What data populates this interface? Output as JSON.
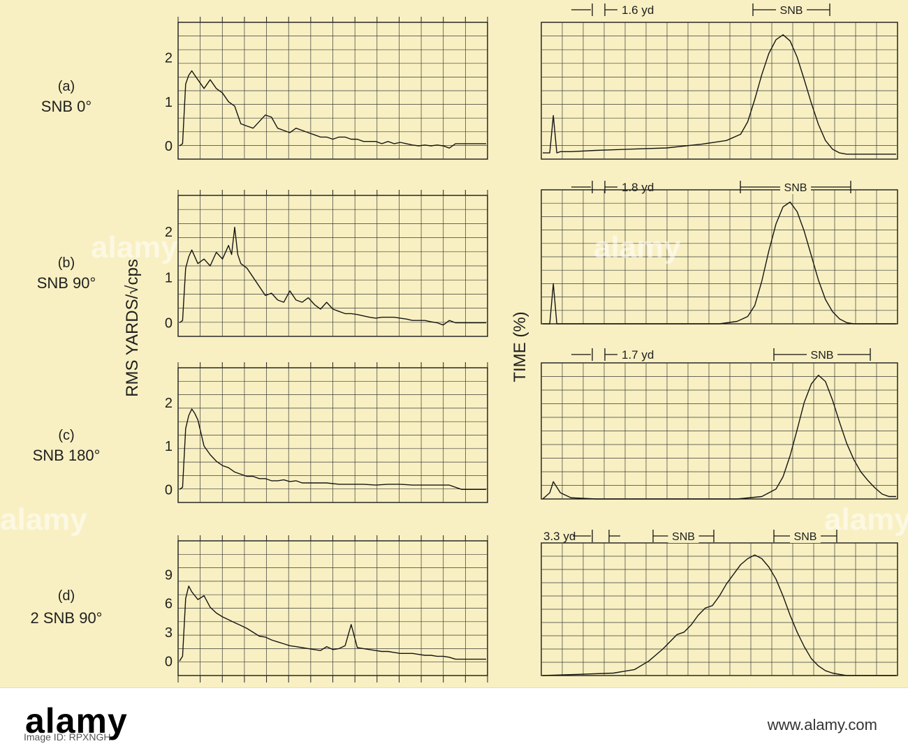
{
  "chart_data": [
    {
      "type": "line",
      "panel_label": "(a)",
      "panel_caption": "SNB 0°",
      "y_ticks": [
        "2",
        "1",
        "0"
      ],
      "ylim": [
        -0.3,
        2.8
      ],
      "x": [
        0,
        1,
        2,
        3,
        4,
        5,
        6,
        8,
        10,
        12,
        14,
        16,
        18,
        20,
        22,
        24,
        26,
        28,
        30,
        32,
        34,
        36,
        38,
        40,
        42,
        44,
        46,
        48,
        50,
        52,
        54,
        56,
        58,
        60,
        62,
        64,
        66,
        68,
        70,
        72,
        74,
        76,
        78,
        80,
        82,
        84,
        86,
        88,
        90,
        92,
        94,
        96,
        98,
        100
      ],
      "values": [
        0.0,
        0.05,
        1.4,
        1.6,
        1.7,
        1.6,
        1.5,
        1.3,
        1.5,
        1.3,
        1.2,
        1.0,
        0.9,
        0.5,
        0.45,
        0.4,
        0.55,
        0.7,
        0.65,
        0.4,
        0.35,
        0.3,
        0.4,
        0.35,
        0.3,
        0.25,
        0.2,
        0.2,
        0.15,
        0.2,
        0.2,
        0.15,
        0.15,
        0.1,
        0.1,
        0.1,
        0.05,
        0.1,
        0.05,
        0.08,
        0.05,
        0.02,
        0.0,
        0.02,
        0.0,
        0.02,
        0.0,
        -0.05,
        0.05,
        0.05,
        0.05,
        0.05,
        0.05,
        0.05
      ],
      "grid": true
    },
    {
      "type": "line",
      "panel_label": "(b)",
      "panel_caption": "SNB 90°",
      "y_ticks": [
        "2",
        "1",
        "0"
      ],
      "ylim": [
        -0.3,
        2.8
      ],
      "x": [
        0,
        1,
        2,
        3,
        4,
        6,
        8,
        10,
        12,
        14,
        16,
        17,
        18,
        19,
        20,
        22,
        24,
        26,
        28,
        30,
        32,
        34,
        36,
        38,
        40,
        42,
        44,
        46,
        48,
        50,
        52,
        54,
        56,
        58,
        60,
        62,
        64,
        66,
        68,
        70,
        72,
        74,
        76,
        78,
        80,
        82,
        84,
        86,
        88,
        90,
        92,
        94,
        96,
        98,
        100
      ],
      "values": [
        0.0,
        0.05,
        1.2,
        1.45,
        1.6,
        1.3,
        1.4,
        1.25,
        1.55,
        1.4,
        1.7,
        1.5,
        2.1,
        1.5,
        1.3,
        1.2,
        1.0,
        0.8,
        0.6,
        0.65,
        0.5,
        0.45,
        0.7,
        0.5,
        0.45,
        0.55,
        0.4,
        0.3,
        0.45,
        0.3,
        0.25,
        0.2,
        0.2,
        0.18,
        0.15,
        0.12,
        0.1,
        0.12,
        0.12,
        0.12,
        0.1,
        0.08,
        0.05,
        0.05,
        0.05,
        0.02,
        0.0,
        -0.05,
        0.05,
        0.0,
        0.0,
        0.0,
        0.0,
        0.0,
        0.0
      ],
      "grid": true
    },
    {
      "type": "line",
      "panel_label": "(c)",
      "panel_caption": "SNB 180°",
      "y_ticks": [
        "2",
        "1",
        "0"
      ],
      "ylim": [
        -0.3,
        2.8
      ],
      "x": [
        0,
        1,
        2,
        3,
        4,
        5,
        6,
        7,
        8,
        10,
        12,
        14,
        16,
        18,
        20,
        22,
        24,
        26,
        28,
        30,
        32,
        34,
        36,
        38,
        40,
        44,
        48,
        52,
        56,
        60,
        64,
        68,
        72,
        76,
        80,
        84,
        88,
        92,
        96,
        100
      ],
      "values": [
        0.0,
        0.05,
        1.4,
        1.7,
        1.85,
        1.75,
        1.6,
        1.3,
        1.0,
        0.8,
        0.65,
        0.55,
        0.5,
        0.4,
        0.35,
        0.3,
        0.3,
        0.25,
        0.25,
        0.2,
        0.2,
        0.22,
        0.18,
        0.2,
        0.15,
        0.15,
        0.15,
        0.12,
        0.12,
        0.12,
        0.1,
        0.12,
        0.12,
        0.1,
        0.1,
        0.1,
        0.1,
        0.0,
        0.0,
        0.0
      ],
      "grid": true
    },
    {
      "type": "line",
      "panel_label": "(d)",
      "panel_caption": "2 SNB 90°",
      "y_ticks": [
        "9",
        "6",
        "3",
        "0"
      ],
      "ylim": [
        -1.5,
        12.5
      ],
      "x": [
        0,
        1,
        2,
        3,
        4,
        6,
        8,
        10,
        12,
        14,
        16,
        18,
        20,
        22,
        24,
        26,
        28,
        30,
        32,
        34,
        36,
        38,
        40,
        42,
        44,
        46,
        48,
        50,
        52,
        54,
        56,
        58,
        60,
        62,
        64,
        66,
        68,
        70,
        72,
        74,
        76,
        78,
        80,
        82,
        84,
        86,
        88,
        90,
        92,
        94,
        96,
        98,
        100
      ],
      "values": [
        0.0,
        0.5,
        6.5,
        7.8,
        7.2,
        6.4,
        6.8,
        5.6,
        5.0,
        4.6,
        4.3,
        4.0,
        3.7,
        3.4,
        3.0,
        2.6,
        2.5,
        2.2,
        2.0,
        1.8,
        1.6,
        1.5,
        1.4,
        1.3,
        1.2,
        1.1,
        1.5,
        1.2,
        1.3,
        1.6,
        3.8,
        1.4,
        1.3,
        1.2,
        1.1,
        1.0,
        1.0,
        0.9,
        0.8,
        0.8,
        0.8,
        0.7,
        0.6,
        0.6,
        0.5,
        0.5,
        0.4,
        0.2,
        0.2,
        0.2,
        0.2,
        0.2,
        0.2
      ],
      "grid": true
    },
    {
      "type": "line",
      "panel_caption": "SNB 0°",
      "distance_label": "1.6 yd",
      "snb_labels": [
        "SNB"
      ],
      "ylim": [
        0,
        1.1
      ],
      "x": [
        0,
        2,
        3,
        4,
        5,
        8,
        15,
        25,
        35,
        45,
        52,
        56,
        58,
        60,
        62,
        64,
        66,
        68,
        70,
        72,
        74,
        76,
        78,
        80,
        82,
        84,
        86,
        88,
        90,
        95,
        100
      ],
      "values": [
        0.05,
        0.05,
        0.35,
        0.05,
        0.06,
        0.06,
        0.07,
        0.08,
        0.09,
        0.12,
        0.15,
        0.2,
        0.3,
        0.48,
        0.68,
        0.85,
        0.96,
        1.0,
        0.95,
        0.82,
        0.64,
        0.45,
        0.28,
        0.15,
        0.08,
        0.05,
        0.04,
        0.04,
        0.04,
        0.04,
        0.04
      ],
      "grid": true
    },
    {
      "type": "line",
      "panel_caption": "SNB 90°",
      "distance_label": "1.8 yd",
      "snb_labels": [
        "SNB"
      ],
      "ylim": [
        0,
        1.1
      ],
      "x": [
        0,
        2,
        3,
        4,
        5,
        10,
        30,
        50,
        55,
        58,
        60,
        62,
        64,
        66,
        68,
        70,
        72,
        74,
        76,
        78,
        80,
        82,
        84,
        86,
        88,
        90,
        95,
        100
      ],
      "values": [
        0.0,
        0.0,
        0.33,
        0.0,
        0.0,
        0.0,
        0.0,
        0.0,
        0.02,
        0.06,
        0.15,
        0.35,
        0.6,
        0.82,
        0.96,
        1.0,
        0.92,
        0.76,
        0.56,
        0.36,
        0.2,
        0.1,
        0.04,
        0.01,
        0.0,
        0.0,
        0.0,
        0.0
      ],
      "grid": true
    },
    {
      "type": "line",
      "panel_caption": "SNB 180°",
      "distance_label": "1.7 yd",
      "snb_labels": [
        "SNB"
      ],
      "ylim": [
        0,
        1.1
      ],
      "x": [
        0,
        2,
        3,
        5,
        8,
        15,
        30,
        55,
        62,
        66,
        68,
        70,
        72,
        74,
        76,
        78,
        80,
        82,
        84,
        86,
        88,
        90,
        92,
        94,
        96,
        98,
        100
      ],
      "values": [
        0.0,
        0.05,
        0.14,
        0.05,
        0.01,
        0.0,
        0.0,
        0.0,
        0.02,
        0.08,
        0.18,
        0.35,
        0.56,
        0.78,
        0.93,
        1.0,
        0.95,
        0.8,
        0.62,
        0.45,
        0.32,
        0.22,
        0.15,
        0.09,
        0.04,
        0.02,
        0.02
      ],
      "grid": true
    },
    {
      "type": "line",
      "panel_caption": "2 SNB 90°",
      "distance_label": "3.3 yd",
      "snb_labels": [
        "SNB",
        "SNB"
      ],
      "ylim": [
        0,
        1.1
      ],
      "x": [
        0,
        10,
        20,
        26,
        30,
        34,
        38,
        40,
        42,
        44,
        46,
        48,
        50,
        52,
        54,
        56,
        58,
        60,
        62,
        64,
        66,
        68,
        70,
        72,
        74,
        76,
        78,
        80,
        82,
        84,
        86,
        90,
        95,
        100
      ],
      "values": [
        0.0,
        0.01,
        0.02,
        0.05,
        0.12,
        0.22,
        0.34,
        0.36,
        0.42,
        0.5,
        0.56,
        0.58,
        0.66,
        0.76,
        0.84,
        0.92,
        0.97,
        1.0,
        0.97,
        0.9,
        0.8,
        0.66,
        0.5,
        0.36,
        0.24,
        0.14,
        0.08,
        0.04,
        0.02,
        0.01,
        0.0,
        0.0,
        0.0,
        0.0
      ],
      "grid": true
    }
  ],
  "labels": {
    "left_axis_label": "RMS YARDS/√cps",
    "right_axis_label": "TIME (%)"
  },
  "banner": {
    "logo": "alamy",
    "image_id": "Image ID: RPXNGH",
    "url": "www.alamy.com",
    "watermark": "alamy"
  }
}
